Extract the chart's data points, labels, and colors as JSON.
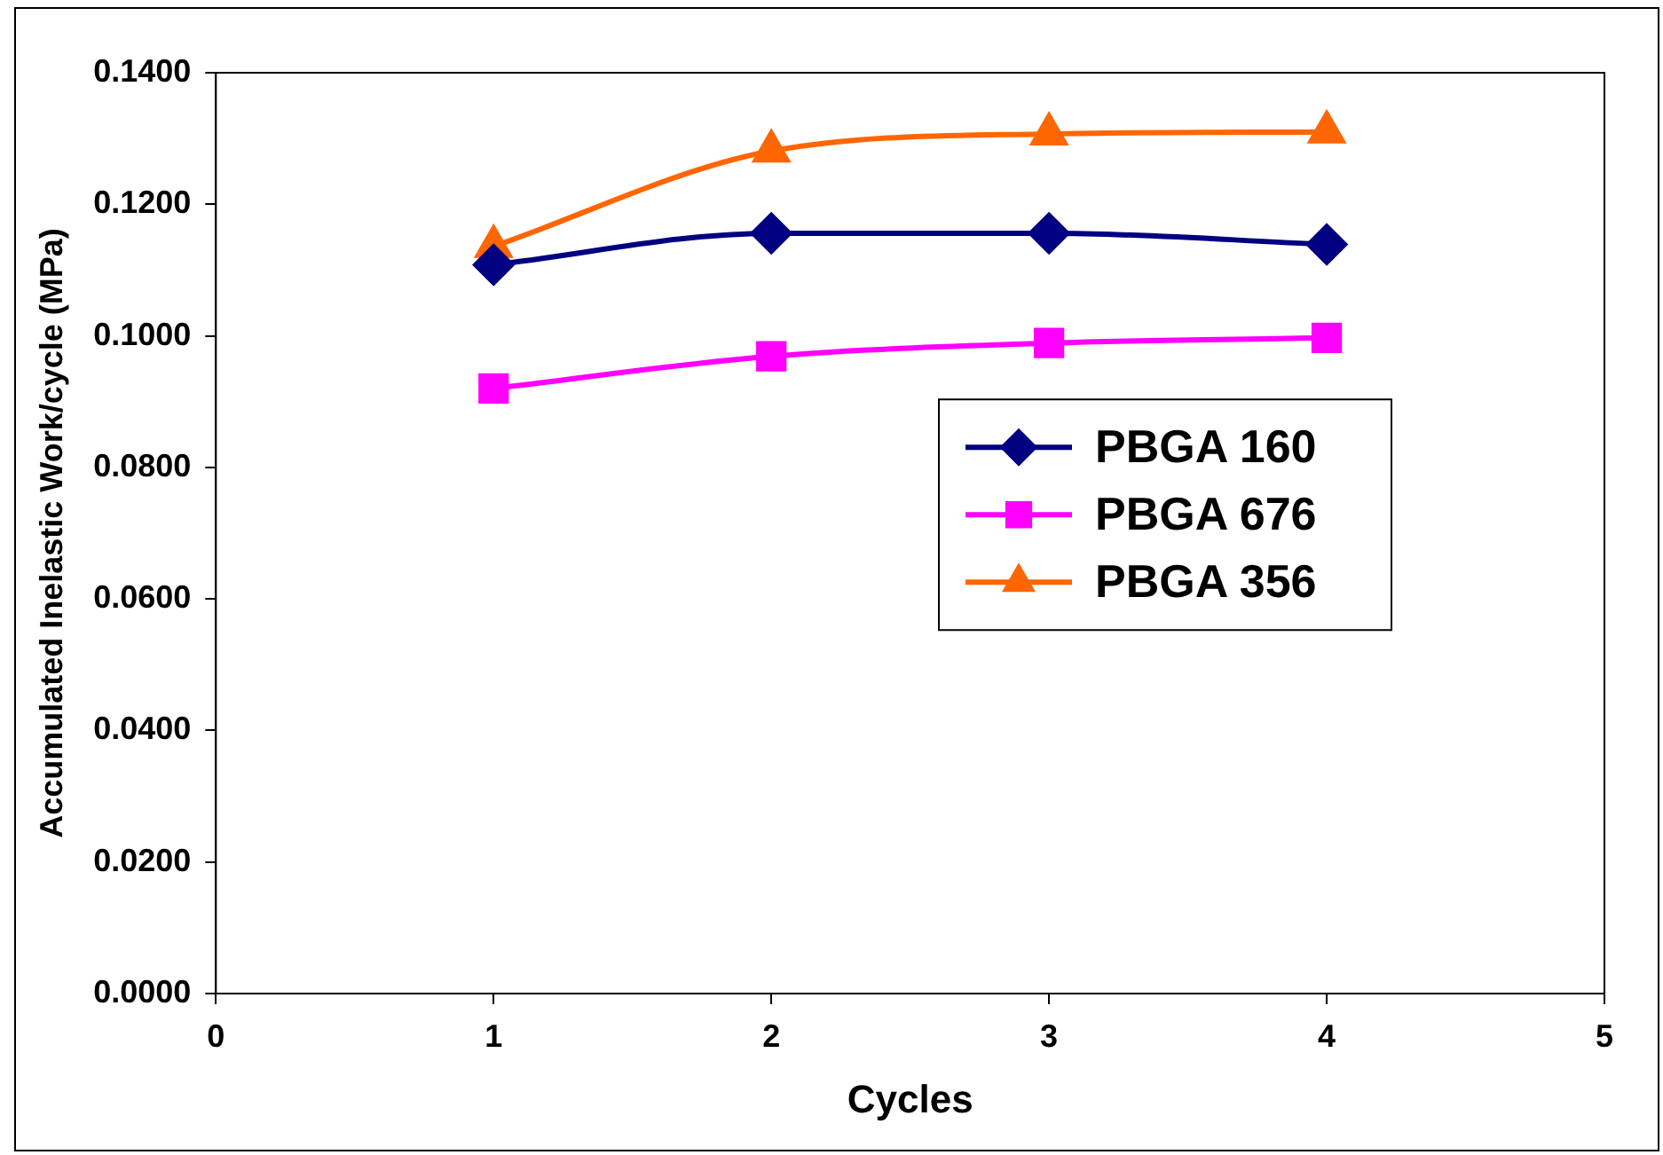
{
  "chart_data": {
    "type": "line",
    "xlabel": "Cycles",
    "ylabel": "Accumulated Inelastic Work/cycle (MPa)",
    "x": [
      1,
      2,
      3,
      4
    ],
    "series": [
      {
        "name": "PBGA 160",
        "color": "#000080",
        "marker": "diamond",
        "values": [
          0.1108,
          0.1156,
          0.1156,
          0.1139
        ]
      },
      {
        "name": "PBGA 676",
        "color": "#ff00ff",
        "marker": "square",
        "values": [
          0.092,
          0.0969,
          0.0989,
          0.0997
        ]
      },
      {
        "name": "PBGA 356",
        "color": "#ff6600",
        "marker": "triangle",
        "values": [
          0.1136,
          0.1281,
          0.1307,
          0.131
        ]
      }
    ],
    "xlim": [
      0,
      5
    ],
    "xticks": [
      0,
      1,
      2,
      3,
      4,
      5
    ],
    "ylim": [
      0,
      0.14
    ],
    "yticks": [
      {
        "value": 0,
        "label": "0.0000"
      },
      {
        "value": 0.02,
        "label": "0.0200"
      },
      {
        "value": 0.04,
        "label": "0.0400"
      },
      {
        "value": 0.06,
        "label": "0.0600"
      },
      {
        "value": 0.08,
        "label": "0.0800"
      },
      {
        "value": 0.1,
        "label": "0.1000"
      },
      {
        "value": 0.12,
        "label": "0.1200"
      },
      {
        "value": 0.14,
        "label": "0.1400"
      }
    ],
    "grid": false,
    "legend": "right",
    "line_style": "solid"
  }
}
